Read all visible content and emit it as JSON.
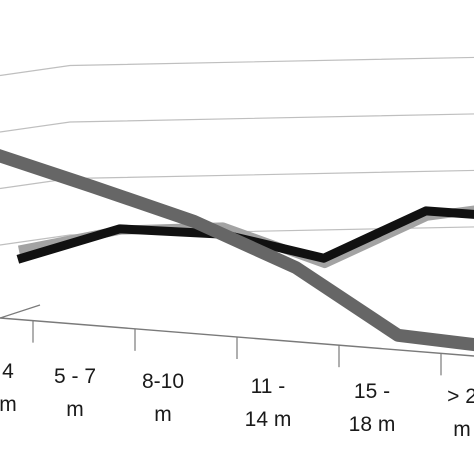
{
  "chart_data": {
    "type": "line",
    "three_d": true,
    "categories": [
      [
        "4",
        "m"
      ],
      [
        "5 - 7",
        "m"
      ],
      [
        "8-10",
        "m"
      ],
      [
        "11 -",
        "14 m"
      ],
      [
        "15 -",
        "18 m"
      ],
      [
        "> 2",
        "m"
      ]
    ],
    "series": [
      {
        "color": "#666666",
        "values": [
          105,
          73,
          40,
          -3,
          -65,
          -78
        ]
      },
      {
        "color": "#111111",
        "values": [
          15,
          30,
          28,
          17,
          40,
          37
        ]
      },
      {
        "color": "#a3a3a3",
        "values": [
          20,
          30,
          32,
          15,
          38,
          45
        ]
      }
    ],
    "grid": true,
    "legend": "none"
  }
}
